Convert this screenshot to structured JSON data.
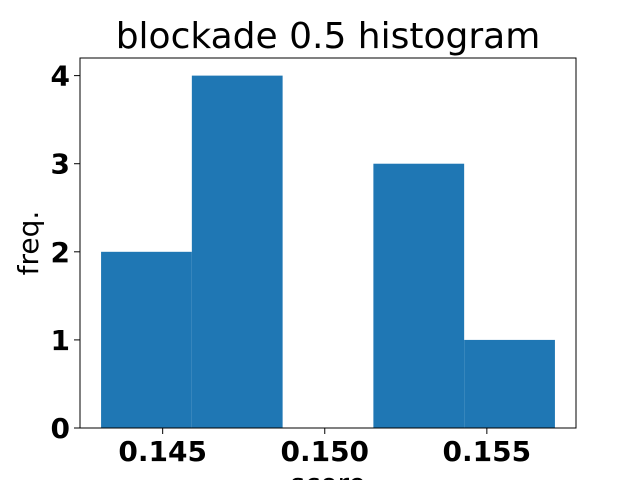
{
  "chart_data": {
    "type": "bar",
    "title": "blockade 0.5 histogram",
    "xlabel": "score",
    "ylabel": "freq.",
    "bins": [
      {
        "x0": 0.1431,
        "x1": 0.1459,
        "value": 2
      },
      {
        "x0": 0.1459,
        "x1": 0.1487,
        "value": 4
      },
      {
        "x0": 0.1487,
        "x1": 0.1515,
        "value": 0
      },
      {
        "x0": 0.1515,
        "x1": 0.1543,
        "value": 3
      },
      {
        "x0": 0.1543,
        "x1": 0.1571,
        "value": 1
      }
    ],
    "values": [
      2,
      4,
      0,
      3,
      1
    ],
    "xlim": [
      0.14245,
      0.15775
    ],
    "ylim": [
      0,
      4.2
    ],
    "xticks": [
      0.145,
      0.15,
      0.155
    ],
    "xtick_labels": [
      "0.145",
      "0.150",
      "0.155"
    ],
    "yticks": [
      0,
      1,
      2,
      3,
      4
    ],
    "ytick_labels": [
      "0",
      "1",
      "2",
      "3",
      "4"
    ],
    "grid": false,
    "bar_color": "#1f77b4"
  }
}
